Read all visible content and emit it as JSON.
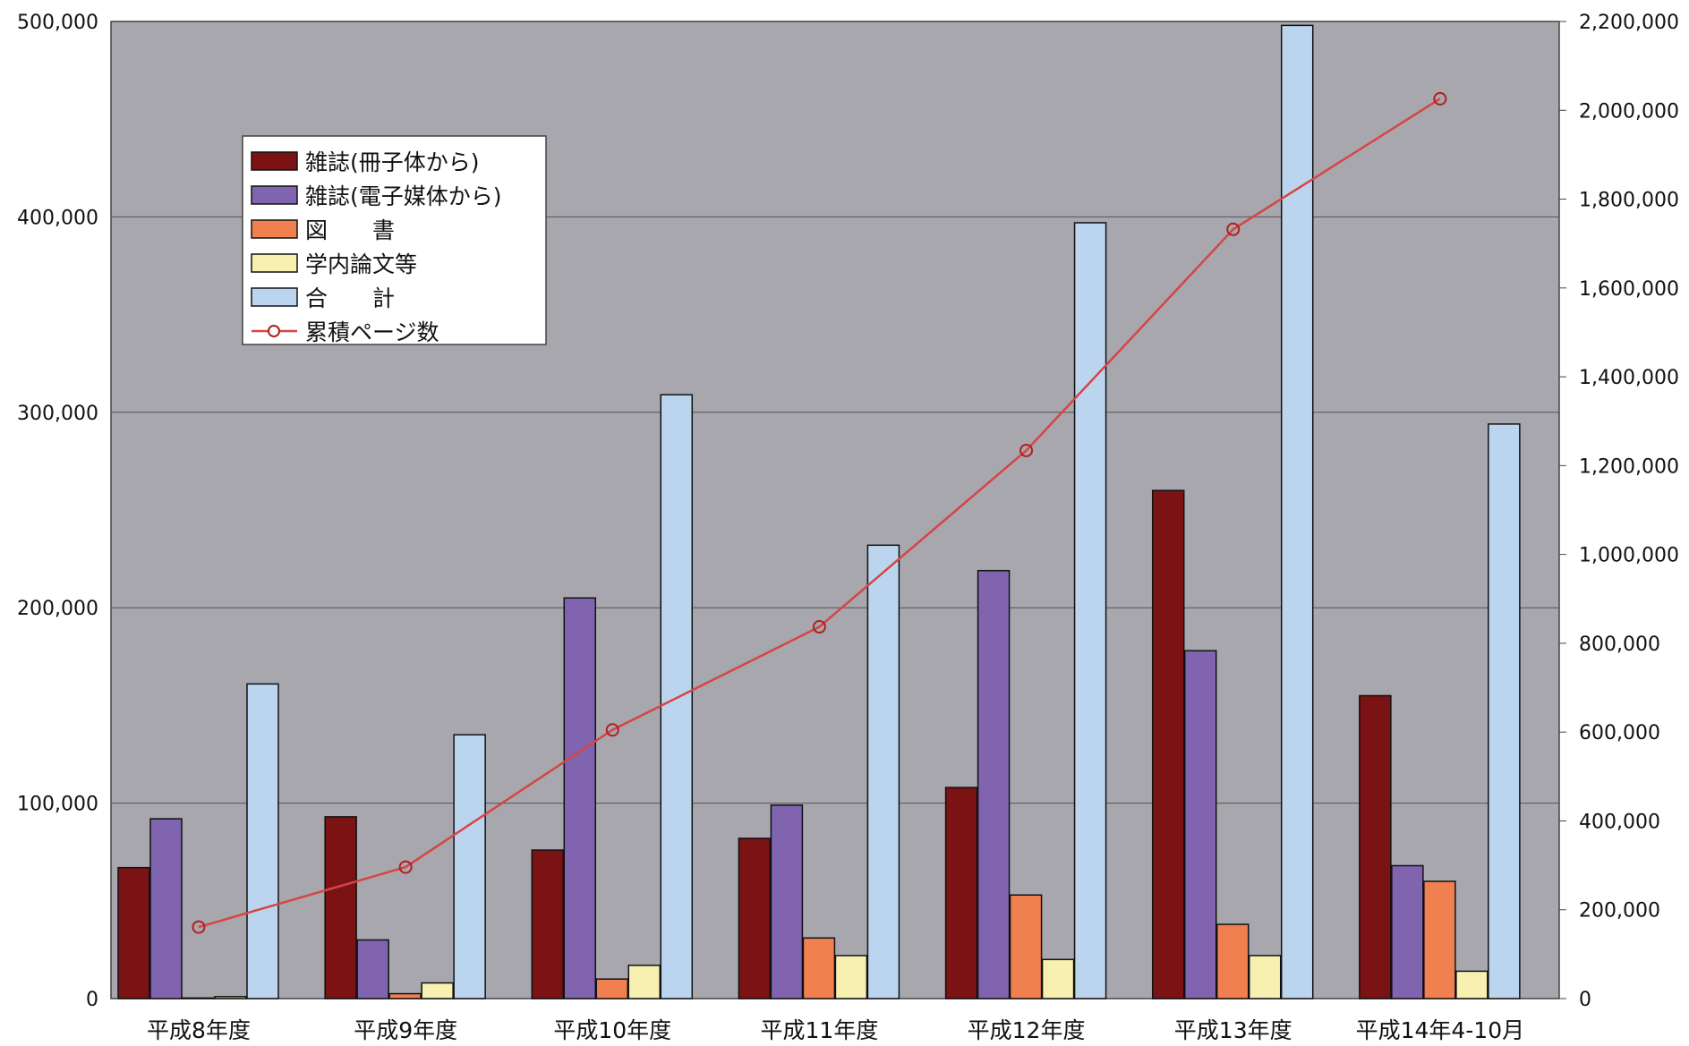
{
  "chart_data": {
    "type": "bar",
    "categories": [
      "平成8年度",
      "平成9年度",
      "平成10年度",
      "平成11年度",
      "平成12年度",
      "平成13年度",
      "平成14年4-10月"
    ],
    "series": [
      {
        "name": "雑誌(冊子体から)",
        "color": "#7b1214",
        "values": [
          67000,
          93000,
          76000,
          82000,
          108000,
          260000,
          155000
        ]
      },
      {
        "name": "雑誌(電子媒体から)",
        "color": "#8064b0",
        "values": [
          92000,
          30000,
          205000,
          99000,
          219000,
          178000,
          68000
        ]
      },
      {
        "name": "図　　書",
        "color": "#f08050",
        "values": [
          300,
          2500,
          10000,
          31000,
          53000,
          38000,
          60000
        ]
      },
      {
        "name": "学内論文等",
        "color": "#f8f0b0",
        "values": [
          1000,
          8000,
          17000,
          22000,
          20000,
          22000,
          14000
        ]
      },
      {
        "name": "合　　計",
        "color": "#bcd5ef",
        "values": [
          161000,
          135000,
          309000,
          232000,
          397000,
          498000,
          294000
        ]
      }
    ],
    "line_series": {
      "name": "累積ページ数",
      "color": "#d64545",
      "axis": "right",
      "values": [
        161000,
        296000,
        605000,
        837000,
        1234000,
        1732000,
        2026000
      ]
    },
    "left_axis": {
      "ylim": [
        0,
        500000
      ],
      "ticks": [
        "0",
        "100,000",
        "200,000",
        "300,000",
        "400,000",
        "500,000"
      ]
    },
    "right_axis": {
      "ylim": [
        0,
        2200000
      ],
      "ticks": [
        "0",
        "200,000",
        "400,000",
        "600,000",
        "800,000",
        "1,000,000",
        "1,200,000",
        "1,400,000",
        "1,600,000",
        "1,800,000",
        "2,000,000",
        "2,200,000"
      ]
    },
    "grid": true,
    "legend_position": "top-left",
    "plot_background": "#a7a7ad"
  }
}
